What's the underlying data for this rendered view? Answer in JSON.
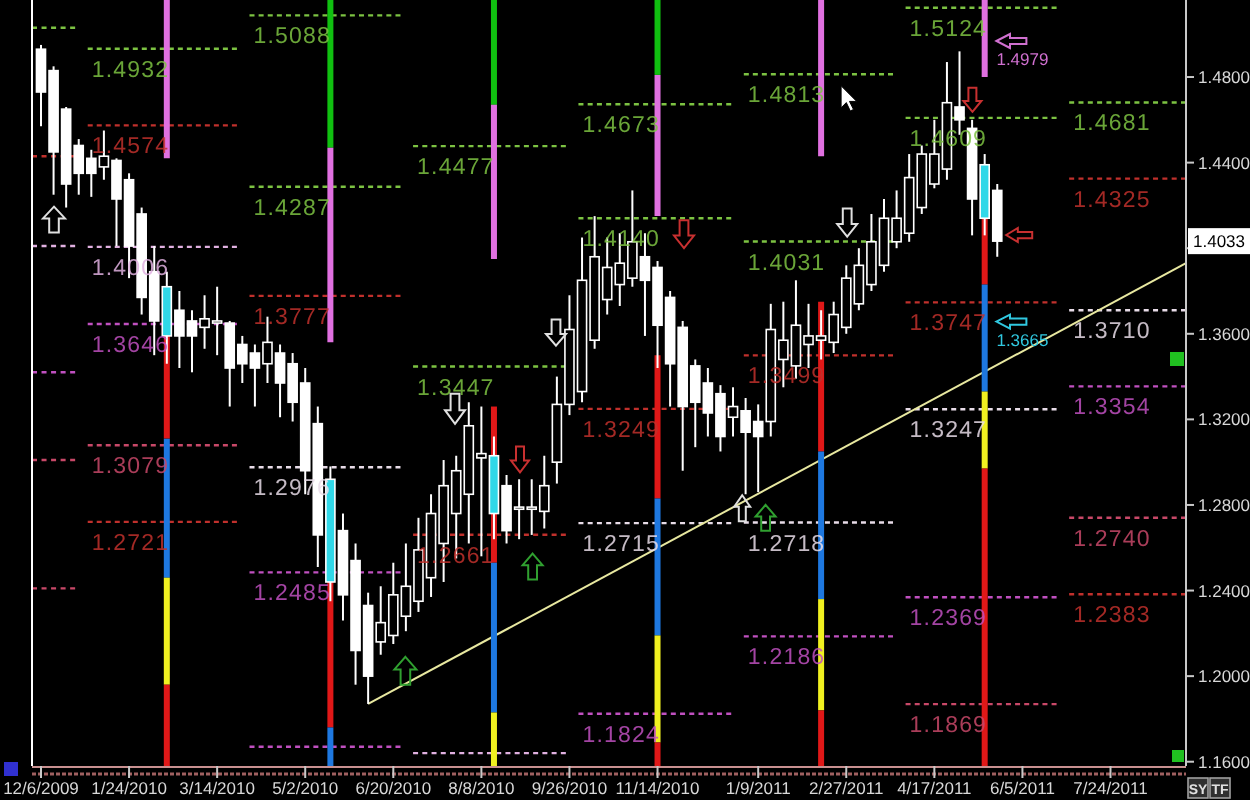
{
  "chart_data": {
    "type": "candlestick",
    "x": [
      "2009-12-06",
      "2009-12-13",
      "2009-12-20",
      "2009-12-27",
      "2010-01-03",
      "2010-01-10",
      "2010-01-17",
      "2010-01-24",
      "2010-01-31",
      "2010-02-07",
      "2010-02-14",
      "2010-02-21",
      "2010-02-28",
      "2010-03-07",
      "2010-03-14",
      "2010-03-21",
      "2010-03-28",
      "2010-04-04",
      "2010-04-11",
      "2010-04-18",
      "2010-04-25",
      "2010-05-02",
      "2010-05-09",
      "2010-05-16",
      "2010-05-23",
      "2010-05-30",
      "2010-06-06",
      "2010-06-13",
      "2010-06-20",
      "2010-06-27",
      "2010-07-04",
      "2010-07-11",
      "2010-07-18",
      "2010-07-25",
      "2010-08-01",
      "2010-08-08",
      "2010-08-15",
      "2010-08-22",
      "2010-08-29",
      "2010-09-05",
      "2010-09-12",
      "2010-09-19",
      "2010-09-26",
      "2010-10-03",
      "2010-10-10",
      "2010-10-17",
      "2010-10-24",
      "2010-10-31",
      "2010-11-07",
      "2010-11-14",
      "2010-11-21",
      "2010-11-28",
      "2010-12-05",
      "2010-12-12",
      "2010-12-19",
      "2010-12-26",
      "2011-01-02",
      "2011-01-09",
      "2011-01-16",
      "2011-01-23",
      "2011-01-30",
      "2011-02-06",
      "2011-02-13",
      "2011-02-20",
      "2011-02-27",
      "2011-03-06",
      "2011-03-13",
      "2011-03-20",
      "2011-03-27",
      "2011-04-03",
      "2011-04-10",
      "2011-04-17",
      "2011-04-24",
      "2011-05-01",
      "2011-05-08",
      "2011-05-15",
      "2011-05-22"
    ],
    "ohlc": [
      [
        1.493,
        1.495,
        1.457,
        1.473
      ],
      [
        1.483,
        1.485,
        1.425,
        1.445
      ],
      [
        1.465,
        1.466,
        1.419,
        1.43
      ],
      [
        1.448,
        1.451,
        1.425,
        1.435
      ],
      [
        1.442,
        1.446,
        1.424,
        1.435
      ],
      [
        1.438,
        1.455,
        1.432,
        1.443
      ],
      [
        1.441,
        1.442,
        1.401,
        1.423
      ],
      [
        1.432,
        1.435,
        1.386,
        1.401
      ],
      [
        1.416,
        1.419,
        1.369,
        1.377
      ],
      [
        1.389,
        1.401,
        1.35,
        1.366
      ],
      [
        1.382,
        1.389,
        1.346,
        1.359
      ],
      [
        1.371,
        1.38,
        1.344,
        1.359
      ],
      [
        1.366,
        1.371,
        1.342,
        1.359
      ],
      [
        1.363,
        1.378,
        1.353,
        1.367
      ],
      [
        1.365,
        1.382,
        1.35,
        1.366
      ],
      [
        1.365,
        1.366,
        1.326,
        1.344
      ],
      [
        1.355,
        1.359,
        1.337,
        1.346
      ],
      [
        1.351,
        1.355,
        1.326,
        1.344
      ],
      [
        1.346,
        1.368,
        1.337,
        1.356
      ],
      [
        1.351,
        1.355,
        1.321,
        1.337
      ],
      [
        1.346,
        1.351,
        1.319,
        1.328
      ],
      [
        1.337,
        1.344,
        1.285,
        1.296
      ],
      [
        1.318,
        1.326,
        1.251,
        1.266
      ],
      [
        1.292,
        1.298,
        1.235,
        1.244
      ],
      [
        1.268,
        1.276,
        1.226,
        1.238
      ],
      [
        1.254,
        1.262,
        1.196,
        1.212
      ],
      [
        1.233,
        1.239,
        1.187,
        1.2
      ],
      [
        1.216,
        1.242,
        1.21,
        1.225
      ],
      [
        1.219,
        1.253,
        1.215,
        1.238
      ],
      [
        1.228,
        1.262,
        1.221,
        1.242
      ],
      [
        1.235,
        1.274,
        1.23,
        1.259
      ],
      [
        1.246,
        1.285,
        1.237,
        1.276
      ],
      [
        1.262,
        1.301,
        1.244,
        1.289
      ],
      [
        1.276,
        1.303,
        1.255,
        1.296
      ],
      [
        1.285,
        1.328,
        1.262,
        1.317
      ],
      [
        1.302,
        1.326,
        1.256,
        1.304
      ],
      [
        1.303,
        1.312,
        1.264,
        1.276
      ],
      [
        1.289,
        1.294,
        1.262,
        1.268
      ],
      [
        1.278,
        1.292,
        1.264,
        1.279
      ],
      [
        1.278,
        1.292,
        1.266,
        1.279
      ],
      [
        1.277,
        1.303,
        1.269,
        1.289
      ],
      [
        1.3,
        1.34,
        1.29,
        1.327
      ],
      [
        1.327,
        1.378,
        1.322,
        1.362
      ],
      [
        1.333,
        1.405,
        1.328,
        1.385
      ],
      [
        1.357,
        1.415,
        1.353,
        1.396
      ],
      [
        1.376,
        1.405,
        1.369,
        1.391
      ],
      [
        1.383,
        1.407,
        1.373,
        1.393
      ],
      [
        1.386,
        1.427,
        1.382,
        1.403
      ],
      [
        1.396,
        1.407,
        1.359,
        1.385
      ],
      [
        1.391,
        1.394,
        1.344,
        1.364
      ],
      [
        1.377,
        1.38,
        1.326,
        1.346
      ],
      [
        1.363,
        1.366,
        1.296,
        1.326
      ],
      [
        1.345,
        1.348,
        1.307,
        1.328
      ],
      [
        1.337,
        1.344,
        1.312,
        1.323
      ],
      [
        1.332,
        1.336,
        1.305,
        1.312
      ],
      [
        1.321,
        1.335,
        1.312,
        1.326
      ],
      [
        1.324,
        1.33,
        1.285,
        1.314
      ],
      [
        1.319,
        1.327,
        1.286,
        1.312
      ],
      [
        1.319,
        1.374,
        1.312,
        1.362
      ],
      [
        1.348,
        1.375,
        1.335,
        1.357
      ],
      [
        1.345,
        1.385,
        1.339,
        1.364
      ],
      [
        1.355,
        1.374,
        1.344,
        1.359
      ],
      [
        1.357,
        1.371,
        1.348,
        1.359
      ],
      [
        1.356,
        1.375,
        1.351,
        1.369
      ],
      [
        1.363,
        1.392,
        1.36,
        1.386
      ],
      [
        1.374,
        1.4,
        1.371,
        1.392
      ],
      [
        1.383,
        1.416,
        1.38,
        1.403
      ],
      [
        1.392,
        1.423,
        1.389,
        1.414
      ],
      [
        1.403,
        1.427,
        1.4,
        1.414
      ],
      [
        1.407,
        1.444,
        1.403,
        1.433
      ],
      [
        1.419,
        1.448,
        1.416,
        1.444
      ],
      [
        1.43,
        1.46,
        1.428,
        1.444
      ],
      [
        1.437,
        1.487,
        1.432,
        1.468
      ],
      [
        1.466,
        1.492,
        1.453,
        1.46
      ],
      [
        1.456,
        1.46,
        1.406,
        1.423
      ],
      [
        1.439,
        1.444,
        1.406,
        1.414
      ],
      [
        1.427,
        1.43,
        1.396,
        1.4033
      ]
    ],
    "colors": [
      "#ffffff",
      "#ffffff",
      "#ffffff",
      "#ffffff",
      "#ffffff",
      "#000000",
      "#ffffff",
      "#ffffff",
      "#ffffff",
      "#ffffff",
      "#30d8e8",
      "#ffffff",
      "#ffffff",
      "#000000",
      "#000000",
      "#ffffff",
      "#ffffff",
      "#ffffff",
      "#000000",
      "#ffffff",
      "#ffffff",
      "#ffffff",
      "#ffffff",
      "#30d8e8",
      "#ffffff",
      "#ffffff",
      "#ffffff",
      "#000000",
      "#000000",
      "#000000",
      "#000000",
      "#000000",
      "#000000",
      "#000000",
      "#000000",
      "#000000",
      "#30d8e8",
      "#ffffff",
      "#000000",
      "#000000",
      "#000000",
      "#000000",
      "#000000",
      "#000000",
      "#000000",
      "#000000",
      "#000000",
      "#000000",
      "#ffffff",
      "#ffffff",
      "#ffffff",
      "#ffffff",
      "#ffffff",
      "#ffffff",
      "#ffffff",
      "#000000",
      "#ffffff",
      "#ffffff",
      "#000000",
      "#000000",
      "#000000",
      "#000000",
      "#000000",
      "#000000",
      "#000000",
      "#000000",
      "#000000",
      "#000000",
      "#000000",
      "#000000",
      "#000000",
      "#000000",
      "#000000",
      "#ffffff",
      "#ffffff",
      "#30d8e8",
      "#ffffff"
    ],
    "xlim": [
      "2009-12-01",
      "2011-09-04"
    ],
    "xticks": [
      {
        "value": "2009-12-06",
        "label": "12/6/2009"
      },
      {
        "value": "2010-01-24",
        "label": "1/24/2010"
      },
      {
        "value": "2010-03-14",
        "label": "3/14/2010"
      },
      {
        "value": "2010-05-02",
        "label": "5/2/2010"
      },
      {
        "value": "2010-06-20",
        "label": "6/20/2010"
      },
      {
        "value": "2010-08-08",
        "label": "8/8/2010"
      },
      {
        "value": "2010-09-26",
        "label": "9/26/2010"
      },
      {
        "value": "2010-11-14",
        "label": "11/14/2010"
      },
      {
        "value": "2011-01-09",
        "label": "1/9/2011"
      },
      {
        "value": "2011-02-27",
        "label": "2/27/2011"
      },
      {
        "value": "2011-04-17",
        "label": "4/17/2011"
      },
      {
        "value": "2011-06-05",
        "label": "6/5/2011"
      },
      {
        "value": "2011-07-24",
        "label": "7/24/2011"
      }
    ],
    "ylim": [
      1.158,
      1.516
    ],
    "yticks": [
      {
        "value": 1.48,
        "label": "1.4800"
      },
      {
        "value": 1.44,
        "label": "1.4400"
      },
      {
        "value": 1.4,
        "label": null
      },
      {
        "value": 1.36,
        "label": "1.3600"
      },
      {
        "value": 1.32,
        "label": "1.3200"
      },
      {
        "value": 1.28,
        "label": "1.2800"
      },
      {
        "value": 1.24,
        "label": "1.2400"
      },
      {
        "value": 1.2,
        "label": "1.2000"
      },
      {
        "value": 1.16,
        "label": "1.1600"
      }
    ],
    "series": [
      {
        "type": "line",
        "x": [
          "2009-12-01",
          "2009-12-25"
        ],
        "values": [
          1.503,
          1.503
        ],
        "color": "#7cc242",
        "line_style": "dashed"
      },
      {
        "type": "line",
        "x": [
          "2009-12-01",
          "2009-12-25"
        ],
        "values": [
          1.443,
          1.443
        ],
        "color": "#c0302c",
        "line_style": "dashed"
      },
      {
        "type": "line",
        "x": [
          "2009-12-01",
          "2009-12-25"
        ],
        "values": [
          1.401,
          1.401
        ],
        "color": "#e0b0e0",
        "line_style": "dashed"
      },
      {
        "type": "line",
        "x": [
          "2009-12-01",
          "2009-12-25"
        ],
        "values": [
          1.342,
          1.342
        ],
        "color": "#c050c0",
        "line_style": "dashed"
      },
      {
        "type": "line",
        "x": [
          "2009-12-01",
          "2009-12-25"
        ],
        "values": [
          1.301,
          1.301
        ],
        "color": "#c84868",
        "line_style": "dashed"
      },
      {
        "type": "line",
        "x": [
          "2009-12-01",
          "2009-12-25"
        ],
        "values": [
          1.241,
          1.241
        ],
        "color": "#c84868",
        "line_style": "dashed"
      },
      {
        "type": "line",
        "x": [
          "2010-01-01",
          "2010-03-25"
        ],
        "values": [
          1.4932,
          1.4932
        ],
        "color": "#7cc242",
        "line_style": "dashed",
        "value_labels": [
          "1.4932",
          null
        ]
      },
      {
        "type": "line",
        "x": [
          "2010-01-01",
          "2010-03-25"
        ],
        "values": [
          1.4574,
          1.4574
        ],
        "color": "#c0302c",
        "line_style": "dashed",
        "value_labels": [
          "1.4574",
          null
        ]
      },
      {
        "type": "line",
        "x": [
          "2010-01-01",
          "2010-03-25"
        ],
        "values": [
          1.4006,
          1.4006
        ],
        "color": "#e0b0e0",
        "line_style": "dashed",
        "value_labels": [
          "1.4006",
          null
        ]
      },
      {
        "type": "line",
        "x": [
          "2010-01-01",
          "2010-03-25"
        ],
        "values": [
          1.3646,
          1.3646
        ],
        "color": "#c050c0",
        "line_style": "dashed",
        "value_labels": [
          "1.3646",
          null
        ]
      },
      {
        "type": "line",
        "x": [
          "2010-01-01",
          "2010-03-25"
        ],
        "values": [
          1.3079,
          1.3079
        ],
        "color": "#c84868",
        "line_style": "dashed",
        "value_labels": [
          "1.3079",
          null
        ]
      },
      {
        "type": "line",
        "x": [
          "2010-01-01",
          "2010-03-25"
        ],
        "values": [
          1.2721,
          1.2721
        ],
        "color": "#c0302c",
        "line_style": "dashed",
        "value_labels": [
          "1.2721",
          null
        ]
      },
      {
        "type": "line",
        "x": [
          "2010-04-01",
          "2010-06-24"
        ],
        "values": [
          1.5088,
          1.5088
        ],
        "color": "#7cc242",
        "line_style": "dashed",
        "value_labels": [
          "1.5088",
          null
        ]
      },
      {
        "type": "line",
        "x": [
          "2010-04-01",
          "2010-06-24"
        ],
        "values": [
          1.4287,
          1.4287
        ],
        "color": "#7cc242",
        "line_style": "dashed",
        "value_labels": [
          "1.4287",
          null
        ]
      },
      {
        "type": "line",
        "x": [
          "2010-04-01",
          "2010-06-24"
        ],
        "values": [
          1.3777,
          1.3777
        ],
        "color": "#c0302c",
        "line_style": "dashed",
        "value_labels": [
          "1.3777",
          null
        ]
      },
      {
        "type": "line",
        "x": [
          "2010-04-01",
          "2010-06-24"
        ],
        "values": [
          1.2976,
          1.2976
        ],
        "color": "#e8dce8",
        "line_style": "dashed",
        "value_labels": [
          "1.2976",
          null
        ]
      },
      {
        "type": "line",
        "x": [
          "2010-04-01",
          "2010-06-24"
        ],
        "values": [
          1.2485,
          1.2485
        ],
        "color": "#c050c0",
        "line_style": "dashed",
        "value_labels": [
          "1.2485",
          null
        ]
      },
      {
        "type": "line",
        "x": [
          "2010-04-01",
          "2010-06-24"
        ],
        "values": [
          1.167,
          1.167
        ],
        "color": "#c050c0",
        "line_style": "dashed"
      },
      {
        "type": "line",
        "x": [
          "2010-07-01",
          "2010-09-24"
        ],
        "values": [
          1.4477,
          1.4477
        ],
        "color": "#7cc242",
        "line_style": "dashed",
        "value_labels": [
          "1.4477",
          null
        ]
      },
      {
        "type": "line",
        "x": [
          "2010-07-01",
          "2010-09-24"
        ],
        "values": [
          1.3447,
          1.3447
        ],
        "color": "#7cc242",
        "line_style": "dashed",
        "value_labels": [
          "1.3447",
          null
        ]
      },
      {
        "type": "line",
        "x": [
          "2010-07-01",
          "2010-09-24"
        ],
        "values": [
          1.2661,
          1.2661
        ],
        "color": "#c0302c",
        "line_style": "dashed",
        "value_labels": [
          "1.2661",
          null
        ]
      },
      {
        "type": "line",
        "x": [
          "2010-07-01",
          "2010-09-24"
        ],
        "values": [
          1.164,
          1.164
        ],
        "color": "#e0b0e0",
        "line_style": "dashed"
      },
      {
        "type": "line",
        "x": [
          "2010-10-01",
          "2010-12-25"
        ],
        "values": [
          1.4673,
          1.4673
        ],
        "color": "#7cc242",
        "line_style": "dashed",
        "value_labels": [
          "1.4673",
          null
        ]
      },
      {
        "type": "line",
        "x": [
          "2010-10-01",
          "2010-12-25"
        ],
        "values": [
          1.414,
          1.414
        ],
        "color": "#7cc242",
        "line_style": "dashed",
        "value_labels": [
          "1.4140",
          null
        ]
      },
      {
        "type": "line",
        "x": [
          "2010-10-01",
          "2010-12-25"
        ],
        "values": [
          1.3249,
          1.3249
        ],
        "color": "#c0302c",
        "line_style": "dashed",
        "value_labels": [
          "1.3249",
          null
        ]
      },
      {
        "type": "line",
        "x": [
          "2010-10-01",
          "2010-12-25"
        ],
        "values": [
          1.2715,
          1.2715
        ],
        "color": "#e8dce8",
        "line_style": "dashed",
        "value_labels": [
          "1.2715",
          null
        ]
      },
      {
        "type": "line",
        "x": [
          "2010-10-01",
          "2010-12-25"
        ],
        "values": [
          1.1824,
          1.1824
        ],
        "color": "#c050c0",
        "line_style": "dashed",
        "value_labels": [
          "1.1824",
          null
        ]
      },
      {
        "type": "line",
        "x": [
          "2011-01-01",
          "2011-03-25"
        ],
        "values": [
          1.4813,
          1.4813
        ],
        "color": "#7cc242",
        "line_style": "dashed",
        "value_labels": [
          "1.4813",
          null
        ]
      },
      {
        "type": "line",
        "x": [
          "2011-01-01",
          "2011-03-25"
        ],
        "values": [
          1.4031,
          1.4031
        ],
        "color": "#7cc242",
        "line_style": "dashed",
        "value_labels": [
          "1.4031",
          null
        ]
      },
      {
        "type": "line",
        "x": [
          "2011-01-01",
          "2011-03-25"
        ],
        "values": [
          1.3499,
          1.3499
        ],
        "color": "#c0302c",
        "line_style": "dashed",
        "value_labels": [
          "1.3499",
          null
        ]
      },
      {
        "type": "line",
        "x": [
          "2011-01-01",
          "2011-03-25"
        ],
        "values": [
          1.2718,
          1.2718
        ],
        "color": "#e8dce8",
        "line_style": "dashed",
        "value_labels": [
          "1.2718",
          null
        ]
      },
      {
        "type": "line",
        "x": [
          "2011-01-01",
          "2011-03-25"
        ],
        "values": [
          1.2186,
          1.2186
        ],
        "color": "#c050c0",
        "line_style": "dashed",
        "value_labels": [
          "1.2186",
          null
        ]
      },
      {
        "type": "line",
        "x": [
          "2011-04-01",
          "2011-06-24"
        ],
        "values": [
          1.5124,
          1.5124
        ],
        "color": "#7cc242",
        "line_style": "dashed",
        "value_labels": [
          "1.5124",
          null
        ]
      },
      {
        "type": "line",
        "x": [
          "2011-04-01",
          "2011-06-24"
        ],
        "values": [
          1.4609,
          1.4609
        ],
        "color": "#7cc242",
        "line_style": "dashed",
        "value_labels": [
          "1.4609",
          null
        ]
      },
      {
        "type": "line",
        "x": [
          "2011-04-01",
          "2011-06-24"
        ],
        "values": [
          1.3747,
          1.3747
        ],
        "color": "#c0302c",
        "line_style": "dashed",
        "value_labels": [
          "1.3747",
          null
        ]
      },
      {
        "type": "line",
        "x": [
          "2011-04-01",
          "2011-06-24"
        ],
        "values": [
          1.3247,
          1.3247
        ],
        "color": "#e8dce8",
        "line_style": "dashed",
        "value_labels": [
          "1.3247",
          null
        ]
      },
      {
        "type": "line",
        "x": [
          "2011-04-01",
          "2011-06-24"
        ],
        "values": [
          1.2369,
          1.2369
        ],
        "color": "#c050c0",
        "line_style": "dashed",
        "value_labels": [
          "1.2369",
          null
        ]
      },
      {
        "type": "line",
        "x": [
          "2011-04-01",
          "2011-06-24"
        ],
        "values": [
          1.1869,
          1.1869
        ],
        "color": "#c84868",
        "line_style": "dashed",
        "value_labels": [
          "1.1869",
          null
        ]
      },
      {
        "type": "line",
        "x": [
          "2011-07-01",
          "2011-09-04"
        ],
        "values": [
          1.4681,
          1.4681
        ],
        "color": "#7cc242",
        "line_style": "dashed",
        "value_labels": [
          "1.4681",
          null
        ]
      },
      {
        "type": "line",
        "x": [
          "2011-07-01",
          "2011-09-04"
        ],
        "values": [
          1.4325,
          1.4325
        ],
        "color": "#c0302c",
        "line_style": "dashed",
        "value_labels": [
          "1.4325",
          null
        ]
      },
      {
        "type": "line",
        "x": [
          "2011-07-01",
          "2011-09-04"
        ],
        "values": [
          1.371,
          1.371
        ],
        "color": "#e8dce8",
        "line_style": "dashed",
        "value_labels": [
          "1.3710",
          null
        ]
      },
      {
        "type": "line",
        "x": [
          "2011-07-01",
          "2011-09-04"
        ],
        "values": [
          1.3354,
          1.3354
        ],
        "color": "#c050c0",
        "line_style": "dashed",
        "value_labels": [
          "1.3354",
          null
        ]
      },
      {
        "type": "line",
        "x": [
          "2011-07-01",
          "2011-09-04"
        ],
        "values": [
          1.274,
          1.274
        ],
        "color": "#c84868",
        "line_style": "dashed",
        "value_labels": [
          "1.2740",
          null
        ]
      },
      {
        "type": "line",
        "x": [
          "2011-07-01",
          "2011-09-04"
        ],
        "values": [
          1.2383,
          1.2383
        ],
        "color": "#c0302c",
        "line_style": "dashed",
        "value_labels": [
          "1.2383",
          null
        ]
      },
      {
        "type": "line",
        "x": [
          "2010-06-06",
          "2011-09-04"
        ],
        "values": [
          1.187,
          1.393
        ],
        "color": "#e8e8a0",
        "line_style": "solid"
      },
      {
        "type": "line",
        "x": [
          "2010-02-14",
          "2010-02-14"
        ],
        "values": [
          1.516,
          1.442
        ],
        "color": "#e070e0",
        "line_style": "solid"
      },
      {
        "type": "line",
        "x": [
          "2010-02-14",
          "2010-02-14"
        ],
        "values": [
          1.362,
          1.311
        ],
        "color": "#e01818",
        "line_style": "solid"
      },
      {
        "type": "line",
        "x": [
          "2010-02-14",
          "2010-02-14"
        ],
        "values": [
          1.311,
          1.246
        ],
        "color": "#1e78e0",
        "line_style": "solid"
      },
      {
        "type": "line",
        "x": [
          "2010-02-14",
          "2010-02-14"
        ],
        "values": [
          1.246,
          1.196
        ],
        "color": "#f0f020",
        "line_style": "solid"
      },
      {
        "type": "line",
        "x": [
          "2010-02-14",
          "2010-02-14"
        ],
        "values": [
          1.196,
          1.158
        ],
        "color": "#e01818",
        "line_style": "solid"
      },
      {
        "type": "line",
        "x": [
          "2010-05-16",
          "2010-05-16"
        ],
        "values": [
          1.516,
          1.447
        ],
        "color": "#10c010",
        "line_style": "solid"
      },
      {
        "type": "line",
        "x": [
          "2010-05-16",
          "2010-05-16"
        ],
        "values": [
          1.447,
          1.356
        ],
        "color": "#e070e0",
        "line_style": "solid"
      },
      {
        "type": "line",
        "x": [
          "2010-05-16",
          "2010-05-16"
        ],
        "values": [
          1.244,
          1.176
        ],
        "color": "#e01818",
        "line_style": "solid"
      },
      {
        "type": "line",
        "x": [
          "2010-05-16",
          "2010-05-16"
        ],
        "values": [
          1.176,
          1.158
        ],
        "color": "#1e78e0",
        "line_style": "solid"
      },
      {
        "type": "line",
        "x": [
          "2010-08-15",
          "2010-08-15"
        ],
        "values": [
          1.516,
          1.467
        ],
        "color": "#10c010",
        "line_style": "solid"
      },
      {
        "type": "line",
        "x": [
          "2010-08-15",
          "2010-08-15"
        ],
        "values": [
          1.467,
          1.395
        ],
        "color": "#e070e0",
        "line_style": "solid"
      },
      {
        "type": "line",
        "x": [
          "2010-08-15",
          "2010-08-15"
        ],
        "values": [
          1.326,
          1.303
        ],
        "color": "#e01818",
        "line_style": "solid"
      },
      {
        "type": "line",
        "x": [
          "2010-08-15",
          "2010-08-15"
        ],
        "values": [
          1.276,
          1.253
        ],
        "color": "#e01818",
        "line_style": "solid"
      },
      {
        "type": "line",
        "x": [
          "2010-08-15",
          "2010-08-15"
        ],
        "values": [
          1.253,
          1.183
        ],
        "color": "#1e78e0",
        "line_style": "solid"
      },
      {
        "type": "line",
        "x": [
          "2010-08-15",
          "2010-08-15"
        ],
        "values": [
          1.183,
          1.158
        ],
        "color": "#f0f020",
        "line_style": "solid"
      },
      {
        "type": "line",
        "x": [
          "2010-11-14",
          "2010-11-14"
        ],
        "values": [
          1.516,
          1.481
        ],
        "color": "#10c010",
        "line_style": "solid"
      },
      {
        "type": "line",
        "x": [
          "2010-11-14",
          "2010-11-14"
        ],
        "values": [
          1.481,
          1.415
        ],
        "color": "#e070e0",
        "line_style": "solid"
      },
      {
        "type": "line",
        "x": [
          "2010-11-14",
          "2010-11-14"
        ],
        "values": [
          1.35,
          1.283
        ],
        "color": "#e01818",
        "line_style": "solid"
      },
      {
        "type": "line",
        "x": [
          "2010-11-14",
          "2010-11-14"
        ],
        "values": [
          1.283,
          1.219
        ],
        "color": "#1e78e0",
        "line_style": "solid"
      },
      {
        "type": "line",
        "x": [
          "2010-11-14",
          "2010-11-14"
        ],
        "values": [
          1.219,
          1.169
        ],
        "color": "#f0f020",
        "line_style": "solid"
      },
      {
        "type": "line",
        "x": [
          "2010-11-14",
          "2010-11-14"
        ],
        "values": [
          1.169,
          1.158
        ],
        "color": "#e01818",
        "line_style": "solid"
      },
      {
        "type": "line",
        "x": [
          "2011-02-13",
          "2011-02-13"
        ],
        "values": [
          1.516,
          1.443
        ],
        "color": "#e070e0",
        "line_style": "solid"
      },
      {
        "type": "line",
        "x": [
          "2011-02-13",
          "2011-02-13"
        ],
        "values": [
          1.375,
          1.305
        ],
        "color": "#e01818",
        "line_style": "solid"
      },
      {
        "type": "line",
        "x": [
          "2011-02-13",
          "2011-02-13"
        ],
        "values": [
          1.305,
          1.236
        ],
        "color": "#1e78e0",
        "line_style": "solid"
      },
      {
        "type": "line",
        "x": [
          "2011-02-13",
          "2011-02-13"
        ],
        "values": [
          1.236,
          1.184
        ],
        "color": "#f0f020",
        "line_style": "solid"
      },
      {
        "type": "line",
        "x": [
          "2011-02-13",
          "2011-02-13"
        ],
        "values": [
          1.184,
          1.158
        ],
        "color": "#e01818",
        "line_style": "solid"
      },
      {
        "type": "line",
        "x": [
          "2011-05-15",
          "2011-05-15"
        ],
        "values": [
          1.516,
          1.48
        ],
        "color": "#e070e0",
        "line_style": "solid"
      },
      {
        "type": "line",
        "x": [
          "2011-05-15",
          "2011-05-15"
        ],
        "values": [
          1.414,
          1.383
        ],
        "color": "#e01818",
        "line_style": "solid"
      },
      {
        "type": "line",
        "x": [
          "2011-05-15",
          "2011-05-15"
        ],
        "values": [
          1.383,
          1.333
        ],
        "color": "#1e78e0",
        "line_style": "solid"
      },
      {
        "type": "line",
        "x": [
          "2011-05-15",
          "2011-05-15"
        ],
        "values": [
          1.333,
          1.297
        ],
        "color": "#f0f020",
        "line_style": "solid"
      },
      {
        "type": "line",
        "x": [
          "2011-05-15",
          "2011-05-15"
        ],
        "values": [
          1.297,
          1.158
        ],
        "color": "#e01818",
        "line_style": "solid"
      }
    ],
    "annotations": [
      "1.4979",
      "1.3665",
      {
        "text": "1.4033",
        "y": 1.4033
      },
      "SY",
      "TF"
    ]
  }
}
